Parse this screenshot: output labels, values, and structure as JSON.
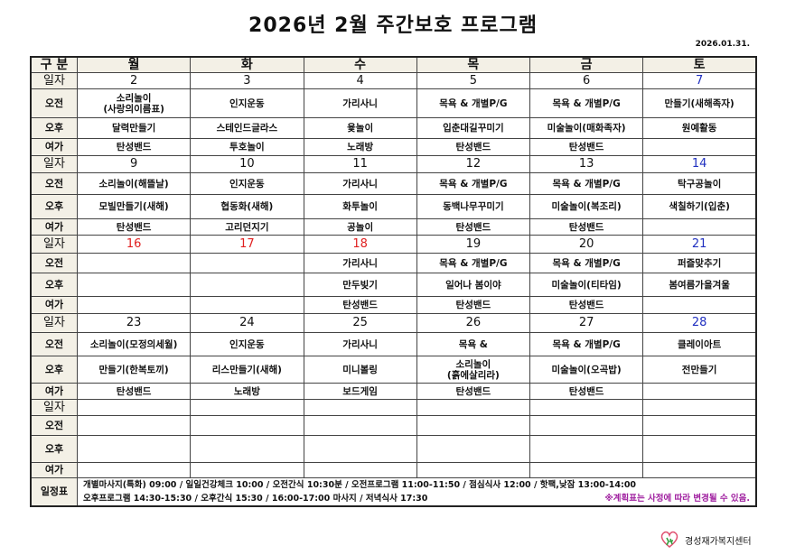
{
  "title": "2026년 2월 주간보호 프로그램",
  "date": "2026.01.31.",
  "header": {
    "label": "구 분",
    "days": [
      "월",
      "화",
      "수",
      "목",
      "금",
      "토"
    ]
  },
  "row_labels": {
    "date": "일자",
    "am": "오전",
    "pm": "오후",
    "leisure": "여가"
  },
  "weeks": [
    {
      "dates": [
        "2",
        "3",
        "4",
        "5",
        "6",
        "7"
      ],
      "date_colors": [
        "",
        "",
        "",
        "",
        "",
        "blue"
      ],
      "am": [
        "소리놀이\n(사랑의이름표)",
        "인지운동",
        "가리사니",
        "목욕 & 개별P/G",
        "목욕 & 개별P/G",
        "만들기(새해족자)"
      ],
      "pm": [
        "달력만들기",
        "스테인드글라스",
        "윷놀이",
        "입춘대길꾸미기",
        "미술놀이(매화족자)",
        "원예활동"
      ],
      "leisure": [
        "탄성밴드",
        "투호놀이",
        "노래방",
        "탄성밴드",
        "탄성밴드",
        ""
      ]
    },
    {
      "dates": [
        "9",
        "10",
        "11",
        "12",
        "13",
        "14"
      ],
      "date_colors": [
        "",
        "",
        "",
        "",
        "",
        "blue"
      ],
      "am": [
        "소리놀이(해뜰날)",
        "인지운동",
        "가리사니",
        "목욕 & 개별P/G",
        "목욕 & 개별P/G",
        "탁구공놀이"
      ],
      "pm": [
        "모빌만들기(새해)",
        "협동화(새해)",
        "화투놀이",
        "동백나무꾸미기",
        "미술놀이(복조리)",
        "색칠하기(입춘)"
      ],
      "leisure": [
        "탄성밴드",
        "고리던지기",
        "공놀이",
        "탄성밴드",
        "탄성밴드",
        ""
      ]
    },
    {
      "dates": [
        "16",
        "17",
        "18",
        "19",
        "20",
        "21"
      ],
      "date_colors": [
        "red",
        "red",
        "red",
        "",
        "",
        "blue"
      ],
      "am": [
        "",
        "",
        "가리사니",
        "목욕 & 개별P/G",
        "목욕 & 개별P/G",
        "퍼즐맞추기"
      ],
      "pm": [
        "",
        "",
        "만두빚기",
        "일어나 봄이야",
        "미술놀이(티타임)",
        "봄여름가을겨울"
      ],
      "leisure": [
        "",
        "",
        "탄성밴드",
        "탄성밴드",
        "탄성밴드",
        ""
      ]
    },
    {
      "dates": [
        "23",
        "24",
        "25",
        "26",
        "27",
        "28"
      ],
      "date_colors": [
        "",
        "",
        "",
        "",
        "",
        "blue"
      ],
      "am": [
        "소리놀이(모정의세월)",
        "인지운동",
        "가리사니",
        "목욕 &",
        "목욕 & 개별P/G",
        "클레이아트"
      ],
      "pm": [
        "만들기(한복토끼)",
        "리스만들기(새해)",
        "미니볼링",
        "소리놀이\n(흙에살리라)",
        "미술놀이(오곡밥)",
        "전만들기"
      ],
      "leisure": [
        "탄성밴드",
        "노래방",
        "보드게임",
        "탄성밴드",
        "탄성밴드",
        ""
      ]
    },
    {
      "dates": [
        "",
        "",
        "",
        "",
        "",
        ""
      ],
      "date_colors": [
        "",
        "",
        "",
        "",
        "",
        ""
      ],
      "am": [
        "",
        "",
        "",
        "",
        "",
        ""
      ],
      "pm": [
        "",
        "",
        "",
        "",
        "",
        ""
      ],
      "leisure": [
        "",
        "",
        "",
        "",
        "",
        ""
      ]
    }
  ],
  "schedule": {
    "label": "일정표",
    "line1": "개별마사지(특화) 09:00 / 일일건강체크 10:00 / 오전간식 10:30분 / 오전프로그램 11:00-11:50 / 점심식사 12:00 / 핫팩,낮잠 13:00-14:00",
    "line2": "오후프로그램 14:30-15:30 / 오후간식 15:30 / 16:00-17:00 마사지 / 저녁식사 17:30",
    "note": "※계획표는 사정에 따라 변경될 수 있음."
  },
  "colors": {
    "red": "#e02020",
    "blue": "#2030c0",
    "note": "#a020a0",
    "header_bg": "#f3f0e6"
  },
  "logo": {
    "text": "경성재가복지센터",
    "icon": "heart-person-logo-icon"
  }
}
